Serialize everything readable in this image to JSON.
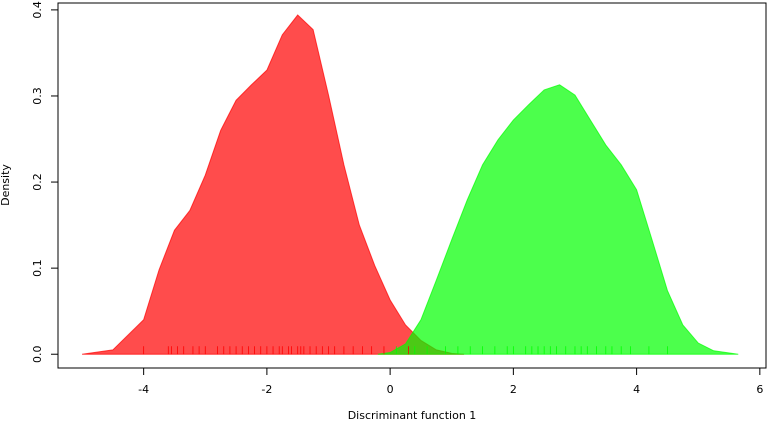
{
  "chart_data": {
    "type": "density",
    "xlabel": "Discriminant function 1",
    "ylabel": "Density",
    "xlim": [
      -5.39,
      6.1
    ],
    "ylim": [
      -0.016,
      0.408
    ],
    "xticks": [
      -4,
      -2,
      0,
      2,
      4,
      6
    ],
    "yticks": [
      {
        "value": 0,
        "label": "0.0"
      },
      0.1,
      0.2,
      0.3,
      0.4
    ],
    "opacity": 0.7,
    "series": [
      {
        "color": "#ff0000",
        "x": [
          -5,
          -4.5,
          -4,
          -3.75,
          -3.5,
          -3.25,
          -3,
          -2.75,
          -2.5,
          -2.25,
          -2,
          -1.75,
          -1.5,
          -1.25,
          -1,
          -0.75,
          -0.5,
          -0.25,
          0,
          0.25,
          0.5,
          0.75,
          1,
          1.2
        ],
        "values": [
          0,
          0.005,
          0.04,
          0.098,
          0.144,
          0.167,
          0.208,
          0.26,
          0.295,
          0.313,
          0.33,
          0.371,
          0.394,
          0.377,
          0.301,
          0.22,
          0.15,
          0.103,
          0.063,
          0.034,
          0.016,
          0.005,
          0.001,
          0
        ],
        "rug": [
          -4,
          -3.6,
          -3.55,
          -3.45,
          -3.35,
          -3.2,
          -3.1,
          -3.0,
          -2.8,
          -2.7,
          -2.6,
          -2.5,
          -2.4,
          -2.3,
          -2.2,
          -2.1,
          -2.0,
          -1.9,
          -1.8,
          -1.75,
          -1.65,
          -1.6,
          -1.5,
          -1.45,
          -1.4,
          -1.3,
          -1.2,
          -1.1,
          -1.0,
          -0.9,
          -0.75,
          -0.6,
          -0.45,
          -0.3,
          -0.1,
          0.3
        ]
      },
      {
        "color": "#00ff00",
        "x": [
          -0.2,
          0,
          0.25,
          0.5,
          0.75,
          1,
          1.25,
          1.5,
          1.75,
          2,
          2.25,
          2.5,
          2.75,
          3,
          3.25,
          3.5,
          3.75,
          4,
          4.25,
          4.5,
          4.75,
          5,
          5.25,
          5.65
        ],
        "values": [
          0,
          0.002,
          0.012,
          0.04,
          0.086,
          0.133,
          0.179,
          0.22,
          0.249,
          0.272,
          0.29,
          0.307,
          0.313,
          0.301,
          0.272,
          0.243,
          0.22,
          0.191,
          0.133,
          0.074,
          0.034,
          0.013,
          0.004,
          0
        ],
        "rug": [
          0.1,
          0.4,
          0.6,
          0.9,
          1.1,
          1.3,
          1.5,
          1.7,
          1.9,
          2.0,
          2.2,
          2.3,
          2.4,
          2.5,
          2.6,
          2.7,
          2.85,
          3.0,
          3.1,
          3.2,
          3.35,
          3.5,
          3.6,
          3.75,
          3.9,
          4.2,
          4.5
        ]
      }
    ]
  }
}
